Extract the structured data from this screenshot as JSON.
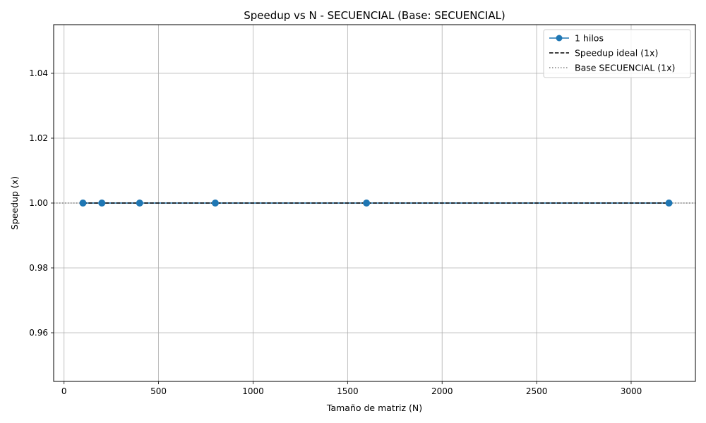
{
  "chart_data": {
    "type": "line",
    "title": "Speedup vs N - SECUENCIAL (Base: SECUENCIAL)",
    "xlabel": "Tamaño de matriz (N)",
    "ylabel": "Speedup (x)",
    "xlim": [
      -55,
      3340
    ],
    "ylim": [
      0.945,
      1.055
    ],
    "x_ticks": [
      0,
      500,
      1000,
      1500,
      2000,
      2500,
      3000
    ],
    "x_tick_labels": [
      "0",
      "500",
      "1000",
      "1500",
      "2000",
      "2500",
      "3000"
    ],
    "y_ticks": [
      0.96,
      0.98,
      1.0,
      1.02,
      1.04
    ],
    "y_tick_labels": [
      "0.96",
      "0.98",
      "1.00",
      "1.02",
      "1.04"
    ],
    "grid": true,
    "legend_position": "top-right",
    "series": [
      {
        "name": "1 hilos",
        "style": "solid-marker",
        "color": "#1f77b4",
        "x": [
          100,
          200,
          400,
          800,
          1600,
          3200
        ],
        "y": [
          1.0,
          1.0,
          1.0,
          1.0,
          1.0,
          1.0
        ]
      },
      {
        "name": "Speedup ideal (1x)",
        "style": "dashed",
        "color": "#000000",
        "x": [
          100,
          3200
        ],
        "y": [
          1.0,
          1.0
        ]
      },
      {
        "name": "Base SECUENCIAL (1x)",
        "style": "dotted",
        "color": "#808080",
        "x": [
          -55,
          3340
        ],
        "y": [
          1.0,
          1.0
        ]
      }
    ]
  }
}
